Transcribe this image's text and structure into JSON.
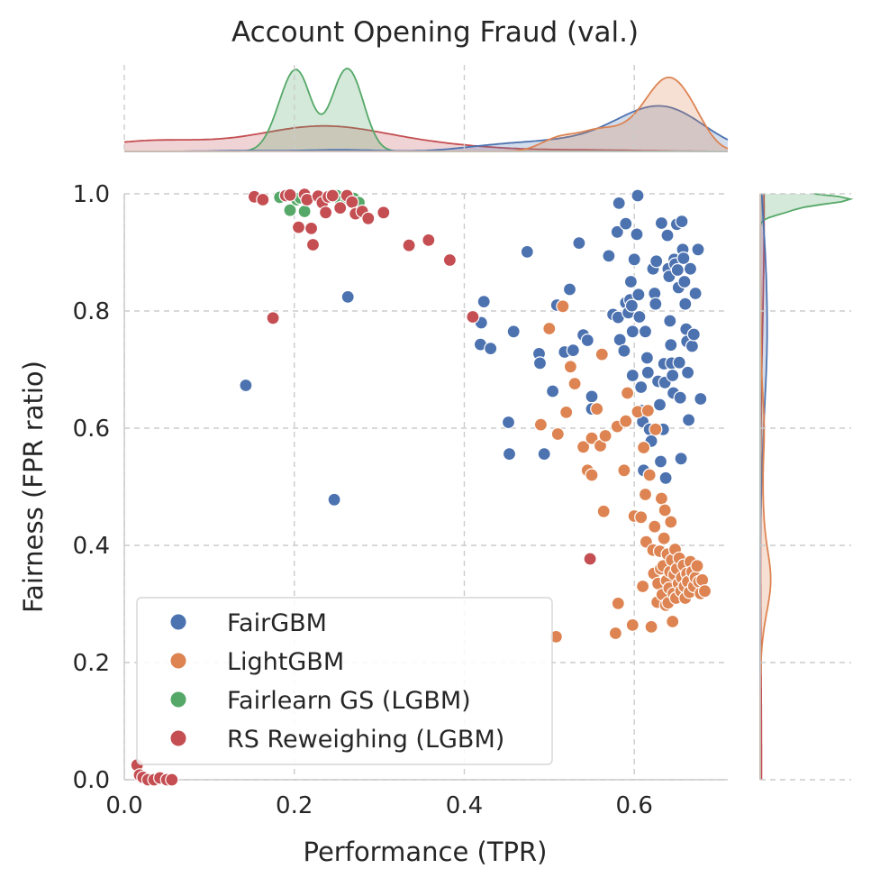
{
  "chart_data": {
    "type": "scatter",
    "title": "Account Opening Fraud (val.)",
    "xlabel": "Performance (TPR)",
    "ylabel": "Fairness (FPR ratio)",
    "xlim": [
      0.0,
      0.72
    ],
    "ylim": [
      0.0,
      1.0
    ],
    "xticks": [
      "0.0",
      "0.2",
      "0.4",
      "0.6"
    ],
    "yticks": [
      "0.0",
      "0.2",
      "0.4",
      "0.6",
      "0.8",
      "1.0"
    ],
    "grid": true,
    "legend_position": "lower-left",
    "series": [
      {
        "name": "FairGBM",
        "color": "#4c72b0",
        "points": [
          [
            0.143,
            0.673
          ],
          [
            0.247,
            0.478
          ],
          [
            0.263,
            0.824
          ],
          [
            0.42,
            0.78
          ],
          [
            0.423,
            0.816
          ],
          [
            0.419,
            0.743
          ],
          [
            0.431,
            0.736
          ],
          [
            0.458,
            0.765
          ],
          [
            0.474,
            0.901
          ],
          [
            0.488,
            0.727
          ],
          [
            0.489,
            0.711
          ],
          [
            0.494,
            0.556
          ],
          [
            0.452,
            0.61
          ],
          [
            0.453,
            0.556
          ],
          [
            0.504,
            0.663
          ],
          [
            0.509,
            0.81
          ],
          [
            0.518,
            0.73
          ],
          [
            0.524,
            0.837
          ],
          [
            0.528,
            0.733
          ],
          [
            0.535,
            0.916
          ],
          [
            0.54,
            0.759
          ],
          [
            0.545,
            0.75
          ],
          [
            0.55,
            0.654
          ],
          [
            0.55,
            0.633
          ],
          [
            0.57,
            0.894
          ],
          [
            0.575,
            0.794
          ],
          [
            0.58,
            0.935
          ],
          [
            0.582,
            0.984
          ],
          [
            0.581,
            0.789
          ],
          [
            0.583,
            0.751
          ],
          [
            0.588,
            0.732
          ],
          [
            0.59,
            0.949
          ],
          [
            0.59,
            0.814
          ],
          [
            0.593,
            0.797
          ],
          [
            0.595,
            0.819
          ],
          [
            0.596,
            0.85
          ],
          [
            0.597,
            0.809
          ],
          [
            0.598,
            0.765
          ],
          [
            0.6,
            0.888
          ],
          [
            0.603,
            0.931
          ],
          [
            0.604,
            0.997
          ],
          [
            0.605,
            0.828
          ],
          [
            0.606,
            0.79
          ],
          [
            0.608,
            0.67
          ],
          [
            0.609,
            0.63
          ],
          [
            0.61,
            0.611
          ],
          [
            0.611,
            0.528
          ],
          [
            0.613,
            0.765
          ],
          [
            0.615,
            0.72
          ],
          [
            0.616,
            0.695
          ],
          [
            0.618,
            0.598
          ],
          [
            0.62,
            0.578
          ],
          [
            0.622,
            0.872
          ],
          [
            0.624,
            0.83
          ],
          [
            0.625,
            0.812
          ],
          [
            0.626,
            0.885
          ],
          [
            0.628,
            0.68
          ],
          [
            0.63,
            0.64
          ],
          [
            0.631,
            0.543
          ],
          [
            0.632,
            0.95
          ],
          [
            0.634,
            0.598
          ],
          [
            0.635,
            0.71
          ],
          [
            0.636,
            0.678
          ],
          [
            0.637,
            0.515
          ],
          [
            0.639,
            0.929
          ],
          [
            0.64,
            0.872
          ],
          [
            0.641,
            0.859
          ],
          [
            0.642,
            0.783
          ],
          [
            0.643,
            0.742
          ],
          [
            0.644,
            0.711
          ],
          [
            0.645,
            0.69
          ],
          [
            0.646,
            0.66
          ],
          [
            0.647,
            0.888
          ],
          [
            0.648,
            0.88
          ],
          [
            0.65,
            0.948
          ],
          [
            0.651,
            0.87
          ],
          [
            0.652,
            0.84
          ],
          [
            0.653,
            0.712
          ],
          [
            0.654,
            0.652
          ],
          [
            0.655,
            0.548
          ],
          [
            0.656,
            0.953
          ],
          [
            0.657,
            0.905
          ],
          [
            0.658,
            0.89
          ],
          [
            0.659,
            0.85
          ],
          [
            0.66,
            0.812
          ],
          [
            0.661,
            0.769
          ],
          [
            0.662,
            0.748
          ],
          [
            0.663,
            0.695
          ],
          [
            0.664,
            0.614
          ],
          [
            0.666,
            0.872
          ],
          [
            0.668,
            0.74
          ],
          [
            0.67,
            0.76
          ],
          [
            0.672,
            0.83
          ],
          [
            0.675,
            0.905
          ],
          [
            0.678,
            0.65
          ],
          [
            0.598,
            0.69
          ]
        ]
      },
      {
        "name": "LightGBM",
        "color": "#dd8452",
        "points": [
          [
            0.49,
            0.606
          ],
          [
            0.5,
            0.77
          ],
          [
            0.508,
            0.244
          ],
          [
            0.51,
            0.59
          ],
          [
            0.516,
            0.808
          ],
          [
            0.52,
            0.627
          ],
          [
            0.525,
            0.705
          ],
          [
            0.53,
            0.676
          ],
          [
            0.54,
            0.568
          ],
          [
            0.545,
            0.528
          ],
          [
            0.55,
            0.52
          ],
          [
            0.55,
            0.583
          ],
          [
            0.556,
            0.633
          ],
          [
            0.56,
            0.57
          ],
          [
            0.562,
            0.726
          ],
          [
            0.564,
            0.458
          ],
          [
            0.566,
            0.587
          ],
          [
            0.578,
            0.25
          ],
          [
            0.58,
            0.603
          ],
          [
            0.581,
            0.301
          ],
          [
            0.588,
            0.528
          ],
          [
            0.59,
            0.612
          ],
          [
            0.592,
            0.66
          ],
          [
            0.598,
            0.264
          ],
          [
            0.6,
            0.45
          ],
          [
            0.604,
            0.628
          ],
          [
            0.608,
            0.448
          ],
          [
            0.61,
            0.33
          ],
          [
            0.611,
            0.567
          ],
          [
            0.613,
            0.487
          ],
          [
            0.614,
            0.406
          ],
          [
            0.616,
            0.63
          ],
          [
            0.618,
            0.52
          ],
          [
            0.62,
            0.261
          ],
          [
            0.622,
            0.392
          ],
          [
            0.623,
            0.352
          ],
          [
            0.624,
            0.432
          ],
          [
            0.625,
            0.598
          ],
          [
            0.627,
            0.303
          ],
          [
            0.628,
            0.335
          ],
          [
            0.63,
            0.39
          ],
          [
            0.631,
            0.36
          ],
          [
            0.632,
            0.48
          ],
          [
            0.633,
            0.316
          ],
          [
            0.634,
            0.365
          ],
          [
            0.635,
            0.412
          ],
          [
            0.636,
            0.46
          ],
          [
            0.637,
            0.298
          ],
          [
            0.638,
            0.34
          ],
          [
            0.639,
            0.385
          ],
          [
            0.64,
            0.302
          ],
          [
            0.641,
            0.327
          ],
          [
            0.642,
            0.355
          ],
          [
            0.643,
            0.44
          ],
          [
            0.644,
            0.375
          ],
          [
            0.645,
            0.27
          ],
          [
            0.646,
            0.318
          ],
          [
            0.647,
            0.35
          ],
          [
            0.648,
            0.393
          ],
          [
            0.649,
            0.31
          ],
          [
            0.65,
            0.36
          ],
          [
            0.652,
            0.335
          ],
          [
            0.653,
            0.378
          ],
          [
            0.655,
            0.322
          ],
          [
            0.656,
            0.345
          ],
          [
            0.658,
            0.366
          ],
          [
            0.659,
            0.33
          ],
          [
            0.66,
            0.31
          ],
          [
            0.662,
            0.352
          ],
          [
            0.663,
            0.338
          ],
          [
            0.665,
            0.32
          ],
          [
            0.666,
            0.372
          ],
          [
            0.668,
            0.355
          ],
          [
            0.67,
            0.33
          ],
          [
            0.672,
            0.345
          ],
          [
            0.674,
            0.365
          ],
          [
            0.676,
            0.338
          ],
          [
            0.678,
            0.318
          ],
          [
            0.68,
            0.341
          ],
          [
            0.683,
            0.322
          ]
        ]
      },
      {
        "name": "Fairlearn GS (LGBM)",
        "color": "#55a868",
        "points": [
          [
            0.183,
            0.994
          ],
          [
            0.195,
            0.972
          ],
          [
            0.203,
            0.99
          ],
          [
            0.207,
            0.993
          ],
          [
            0.212,
            0.97
          ],
          [
            0.25,
            0.997
          ],
          [
            0.255,
            0.987
          ],
          [
            0.262,
            0.99
          ],
          [
            0.27,
            0.992
          ],
          [
            0.276,
            0.985
          ]
        ]
      },
      {
        "name": "RS Reweighing (LGBM)",
        "color": "#c44e52",
        "points": [
          [
            0.015,
            0.025
          ],
          [
            0.018,
            0.008
          ],
          [
            0.022,
            0.004
          ],
          [
            0.028,
            0.0
          ],
          [
            0.035,
            0.0
          ],
          [
            0.042,
            0.003
          ],
          [
            0.05,
            0.0
          ],
          [
            0.056,
            0.0
          ],
          [
            0.153,
            0.995
          ],
          [
            0.163,
            0.99
          ],
          [
            0.175,
            0.788
          ],
          [
            0.19,
            0.997
          ],
          [
            0.195,
            0.998
          ],
          [
            0.205,
            0.943
          ],
          [
            0.212,
            0.999
          ],
          [
            0.215,
            0.99
          ],
          [
            0.22,
            0.941
          ],
          [
            0.222,
            0.913
          ],
          [
            0.228,
            0.996
          ],
          [
            0.233,
            0.985
          ],
          [
            0.237,
            0.968
          ],
          [
            0.24,
            0.995
          ],
          [
            0.245,
            0.997
          ],
          [
            0.254,
            0.976
          ],
          [
            0.262,
            0.997
          ],
          [
            0.268,
            0.986
          ],
          [
            0.272,
            0.966
          ],
          [
            0.28,
            0.97
          ],
          [
            0.287,
            0.958
          ],
          [
            0.305,
            0.968
          ],
          [
            0.335,
            0.912
          ],
          [
            0.358,
            0.921
          ],
          [
            0.383,
            0.887
          ],
          [
            0.41,
            0.79
          ],
          [
            0.548,
            0.377
          ]
        ]
      }
    ]
  }
}
